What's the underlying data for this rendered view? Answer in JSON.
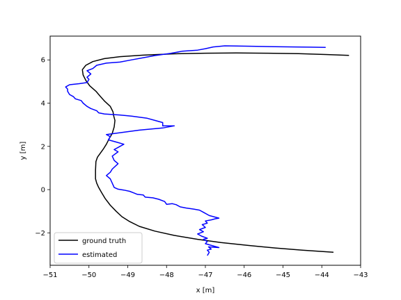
{
  "chart_data": {
    "type": "line",
    "xlabel": "x [m]",
    "ylabel": "y [m]",
    "xlim": [
      -51,
      -43
    ],
    "ylim": [
      -3.5,
      7.1
    ],
    "x_ticks": [
      -51,
      -50,
      -49,
      -48,
      -47,
      -46,
      -45,
      -44,
      -43
    ],
    "y_ticks": [
      -2,
      0,
      2,
      4,
      6
    ],
    "x_tick_labels": [
      "−51",
      "−50",
      "−49",
      "−48",
      "−47",
      "−46",
      "−45",
      "−44",
      "−43"
    ],
    "y_tick_labels": [
      "−2",
      "0",
      "2",
      "4",
      "6"
    ],
    "grid": false,
    "legend_position": "lower-left",
    "series": [
      {
        "name": "ground truth",
        "color": "#000000",
        "points": [
          [
            -43.7,
            -2.9
          ],
          [
            -44.5,
            -2.8
          ],
          [
            -45.2,
            -2.7
          ],
          [
            -45.9,
            -2.58
          ],
          [
            -46.6,
            -2.45
          ],
          [
            -47.2,
            -2.3
          ],
          [
            -47.8,
            -2.12
          ],
          [
            -48.3,
            -1.92
          ],
          [
            -48.7,
            -1.7
          ],
          [
            -48.95,
            -1.48
          ],
          [
            -49.15,
            -1.25
          ],
          [
            -49.3,
            -1.0
          ],
          [
            -49.45,
            -0.72
          ],
          [
            -49.58,
            -0.42
          ],
          [
            -49.68,
            -0.12
          ],
          [
            -49.75,
            0.1
          ],
          [
            -49.8,
            0.3
          ],
          [
            -49.83,
            0.5
          ],
          [
            -49.83,
            0.9
          ],
          [
            -49.82,
            1.3
          ],
          [
            -49.78,
            1.5
          ],
          [
            -49.7,
            1.7
          ],
          [
            -49.62,
            1.9
          ],
          [
            -49.55,
            2.1
          ],
          [
            -49.48,
            2.35
          ],
          [
            -49.4,
            2.6
          ],
          [
            -49.35,
            2.9
          ],
          [
            -49.33,
            3.2
          ],
          [
            -49.36,
            3.4
          ],
          [
            -49.38,
            3.6
          ],
          [
            -49.45,
            3.85
          ],
          [
            -49.6,
            4.1
          ],
          [
            -49.7,
            4.3
          ],
          [
            -49.82,
            4.55
          ],
          [
            -49.98,
            4.8
          ],
          [
            -50.08,
            5.05
          ],
          [
            -50.15,
            5.3
          ],
          [
            -50.17,
            5.55
          ],
          [
            -50.08,
            5.75
          ],
          [
            -49.9,
            5.92
          ],
          [
            -49.6,
            6.06
          ],
          [
            -49.2,
            6.15
          ],
          [
            -48.6,
            6.22
          ],
          [
            -47.8,
            6.28
          ],
          [
            -47.0,
            6.31
          ],
          [
            -46.2,
            6.32
          ],
          [
            -45.4,
            6.31
          ],
          [
            -44.6,
            6.29
          ],
          [
            -43.9,
            6.25
          ],
          [
            -43.3,
            6.21
          ]
        ]
      },
      {
        "name": "estimated",
        "color": "#0000ff",
        "points": [
          [
            -46.95,
            -3.05
          ],
          [
            -46.9,
            -2.9
          ],
          [
            -46.95,
            -2.8
          ],
          [
            -46.85,
            -2.75
          ],
          [
            -46.92,
            -2.65
          ],
          [
            -46.65,
            -2.68
          ],
          [
            -47.0,
            -2.5
          ],
          [
            -46.95,
            -2.4
          ],
          [
            -47.05,
            -2.3
          ],
          [
            -46.95,
            -2.25
          ],
          [
            -47.1,
            -2.15
          ],
          [
            -47.2,
            -2.05
          ],
          [
            -47.05,
            -1.95
          ],
          [
            -47.15,
            -1.85
          ],
          [
            -47.0,
            -1.75
          ],
          [
            -47.08,
            -1.62
          ],
          [
            -46.95,
            -1.55
          ],
          [
            -47.0,
            -1.45
          ],
          [
            -46.85,
            -1.4
          ],
          [
            -46.75,
            -1.35
          ],
          [
            -46.65,
            -1.32
          ],
          [
            -46.9,
            -1.2
          ],
          [
            -47.05,
            -1.05
          ],
          [
            -47.15,
            -0.95
          ],
          [
            -47.3,
            -0.9
          ],
          [
            -47.5,
            -0.85
          ],
          [
            -47.65,
            -0.8
          ],
          [
            -47.75,
            -0.7
          ],
          [
            -47.85,
            -0.65
          ],
          [
            -48.0,
            -0.68
          ],
          [
            -48.05,
            -0.55
          ],
          [
            -48.2,
            -0.45
          ],
          [
            -48.35,
            -0.38
          ],
          [
            -48.55,
            -0.35
          ],
          [
            -48.6,
            -0.25
          ],
          [
            -48.75,
            -0.22
          ],
          [
            -48.85,
            -0.15
          ],
          [
            -48.95,
            -0.08
          ],
          [
            -49.1,
            -0.02
          ],
          [
            -49.25,
            0.02
          ],
          [
            -49.35,
            0.1
          ],
          [
            -49.4,
            0.3
          ],
          [
            -49.45,
            0.5
          ],
          [
            -49.55,
            0.65
          ],
          [
            -49.45,
            0.8
          ],
          [
            -49.4,
            0.95
          ],
          [
            -49.25,
            1.2
          ],
          [
            -49.35,
            1.35
          ],
          [
            -49.4,
            1.55
          ],
          [
            -49.25,
            1.75
          ],
          [
            -49.35,
            1.85
          ],
          [
            -49.25,
            1.95
          ],
          [
            -49.1,
            2.1
          ],
          [
            -49.3,
            2.2
          ],
          [
            -49.5,
            2.3
          ],
          [
            -49.45,
            2.45
          ],
          [
            -49.55,
            2.55
          ],
          [
            -48.7,
            2.75
          ],
          [
            -48.1,
            2.85
          ],
          [
            -47.8,
            2.95
          ],
          [
            -48.1,
            2.95
          ],
          [
            -48.1,
            3.1
          ],
          [
            -48.3,
            3.2
          ],
          [
            -48.5,
            3.3
          ],
          [
            -48.9,
            3.4
          ],
          [
            -49.2,
            3.45
          ],
          [
            -49.6,
            3.5
          ],
          [
            -49.75,
            3.55
          ],
          [
            -49.8,
            3.65
          ],
          [
            -49.95,
            3.75
          ],
          [
            -50.05,
            3.85
          ],
          [
            -50.15,
            4.0
          ],
          [
            -50.2,
            4.12
          ],
          [
            -50.35,
            4.2
          ],
          [
            -50.4,
            4.3
          ],
          [
            -50.5,
            4.4
          ],
          [
            -50.55,
            4.55
          ],
          [
            -50.55,
            4.65
          ],
          [
            -50.6,
            4.75
          ],
          [
            -50.5,
            4.85
          ],
          [
            -50.25,
            4.9
          ],
          [
            -50.05,
            4.95
          ],
          [
            -50.0,
            5.1
          ],
          [
            -50.05,
            5.2
          ],
          [
            -49.95,
            5.35
          ],
          [
            -50.05,
            5.5
          ],
          [
            -49.9,
            5.6
          ],
          [
            -49.8,
            5.75
          ],
          [
            -49.55,
            5.85
          ],
          [
            -49.2,
            5.9
          ],
          [
            -48.9,
            6.0
          ],
          [
            -48.6,
            6.1
          ],
          [
            -48.3,
            6.2
          ],
          [
            -47.9,
            6.3
          ],
          [
            -47.6,
            6.4
          ],
          [
            -47.2,
            6.45
          ],
          [
            -47.0,
            6.52
          ],
          [
            -46.8,
            6.6
          ],
          [
            -46.5,
            6.65
          ],
          [
            -46.2,
            6.64
          ],
          [
            -45.8,
            6.63
          ],
          [
            -45.2,
            6.61
          ],
          [
            -44.7,
            6.6
          ],
          [
            -44.3,
            6.59
          ],
          [
            -43.9,
            6.58
          ]
        ]
      }
    ]
  }
}
